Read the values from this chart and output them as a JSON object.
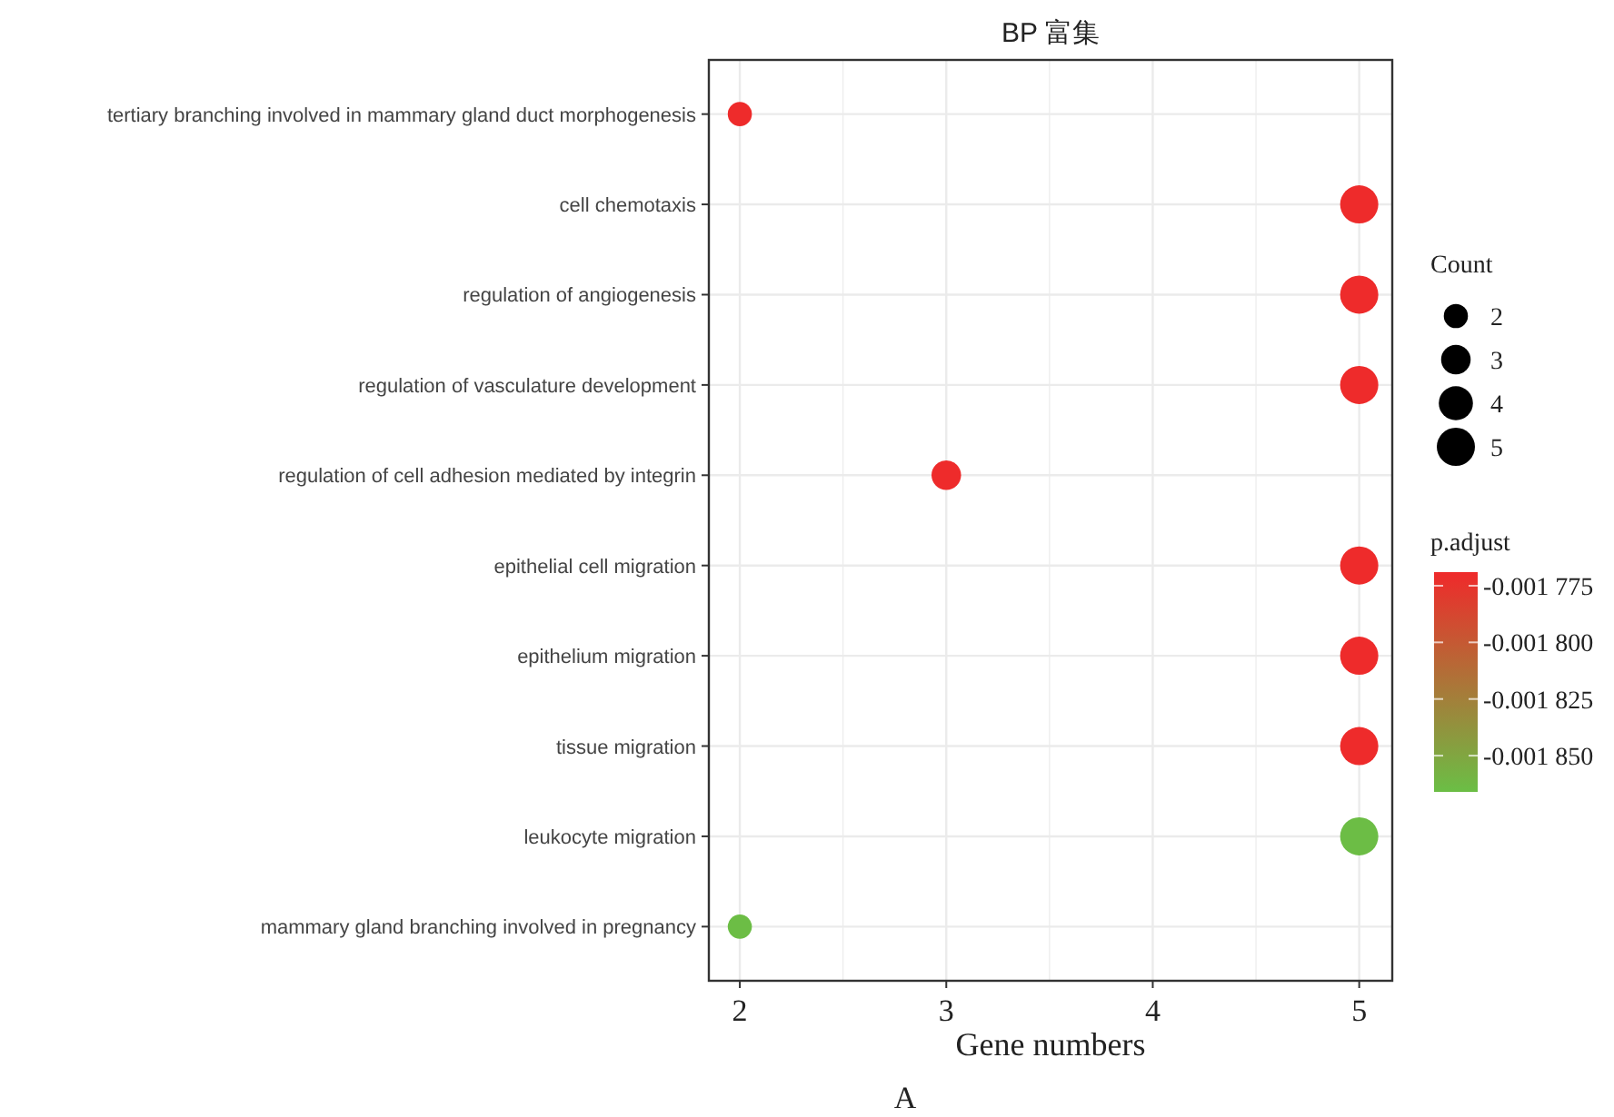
{
  "chart_data": {
    "type": "bubble",
    "title": "BP 富集",
    "xlabel": "Gene numbers",
    "orientation": "horizontal",
    "categories": [
      "tertiary branching involved in mammary gland duct morphogenesis",
      "cell chemotaxis",
      "regulation of angiogenesis",
      "regulation of vasculature development",
      "regulation of cell adhesion mediated by integrin",
      "epithelial cell migration",
      "epithelium migration",
      "tissue migration",
      "leukocyte migration",
      "mammary gland branching involved in pregnancy"
    ],
    "values": [
      2,
      5,
      5,
      5,
      3,
      5,
      5,
      5,
      5,
      2
    ],
    "sizes": [
      2,
      5,
      5,
      5,
      3,
      5,
      5,
      5,
      5,
      2
    ],
    "size_legend": [
      2,
      3,
      4,
      5
    ],
    "legend_title": "Count",
    "cvalues": [
      -0.00177,
      -0.00177,
      -0.00177,
      -0.00177,
      -0.00177,
      -0.00177,
      -0.00177,
      -0.00177,
      -0.001865,
      -0.001865
    ],
    "colors": [
      "#ee2b2b",
      "#ee2b2b",
      "#ee2b2b",
      "#ee2b2b",
      "#ee2b2b",
      "#ee2b2b",
      "#ee2b2b",
      "#ee2b2b",
      "#6cbd45",
      "#6cbd45"
    ],
    "clabel": "p.adjust",
    "clim": [
      -0.001866,
      -0.001769
    ],
    "cticks": [
      {
        "value": -0.001775,
        "label": "-0.001 775"
      },
      {
        "value": -0.0018,
        "label": "-0.001 800"
      },
      {
        "value": -0.001825,
        "label": "-0.001 825"
      },
      {
        "value": -0.00185,
        "label": "-0.001 850"
      }
    ],
    "xlim": [
      1.85,
      5.16
    ],
    "xticks": [
      2,
      {
        "value": 2.5,
        "label": null
      },
      3,
      {
        "value": 3.5,
        "label": null
      },
      4,
      {
        "value": 4.5,
        "label": null
      },
      5
    ],
    "grid": true,
    "marker": "circle",
    "annotations": [
      "A"
    ]
  }
}
